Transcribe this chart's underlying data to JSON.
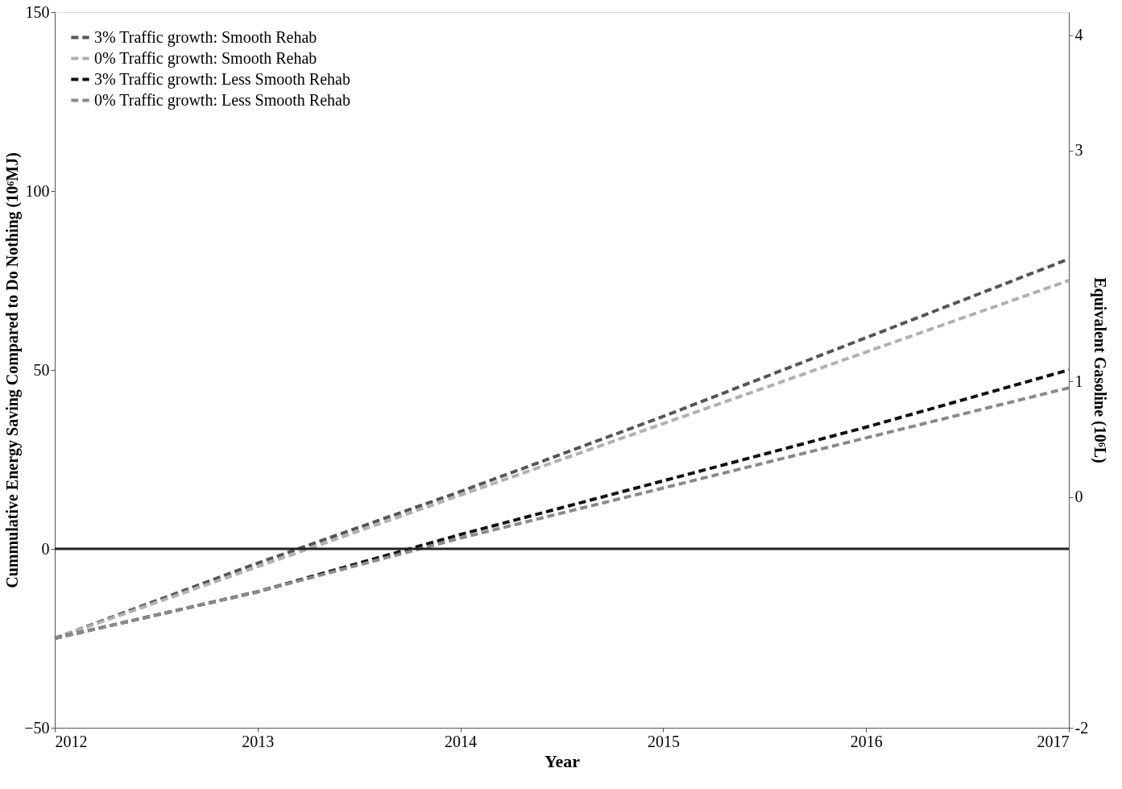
{
  "chart_data": {
    "type": "line",
    "xlabel": "Year",
    "ylabel": "Cummulative Energy Saving Compared to Do Nothing (10⁶MJ)",
    "y2label": "Equivalent Gasoline (10⁶L)",
    "x": [
      2012,
      2013,
      2014,
      2015,
      2016,
      2017
    ],
    "series": [
      {
        "name": "3% Traffic growth: Smooth Rehab",
        "color": "#555555",
        "values": [
          -25,
          -4,
          16,
          37,
          59,
          81
        ]
      },
      {
        "name": "0% Traffic growth: Smooth Rehab",
        "color": "#b0b0b0",
        "values": [
          -25,
          -5,
          15,
          35,
          55,
          75
        ]
      },
      {
        "name": "3% Traffic growth: Less Smooth Rehab",
        "color": "#111111",
        "values": [
          -25,
          -12,
          4,
          19,
          34,
          50
        ]
      },
      {
        "name": "0% Traffic growth: Less Smooth Rehab",
        "color": "#8a8a8a",
        "values": [
          -25,
          -12,
          3,
          17,
          31,
          45
        ]
      }
    ],
    "xlim": [
      2012,
      2017
    ],
    "xticks": [
      2012,
      2013,
      2014,
      2015,
      2016,
      2017
    ],
    "ylim": [
      -50,
      150
    ],
    "yticks": [
      -50,
      0,
      50,
      100,
      150
    ],
    "y2lim": [
      -2,
      4.2
    ],
    "y2ticks": [
      -2,
      0,
      1,
      3,
      4
    ],
    "ref_lines": [
      {
        "axis": "y",
        "value": 0,
        "color": "#222222"
      }
    ],
    "line_style": "dashed",
    "grid": false,
    "legend": "top left"
  }
}
